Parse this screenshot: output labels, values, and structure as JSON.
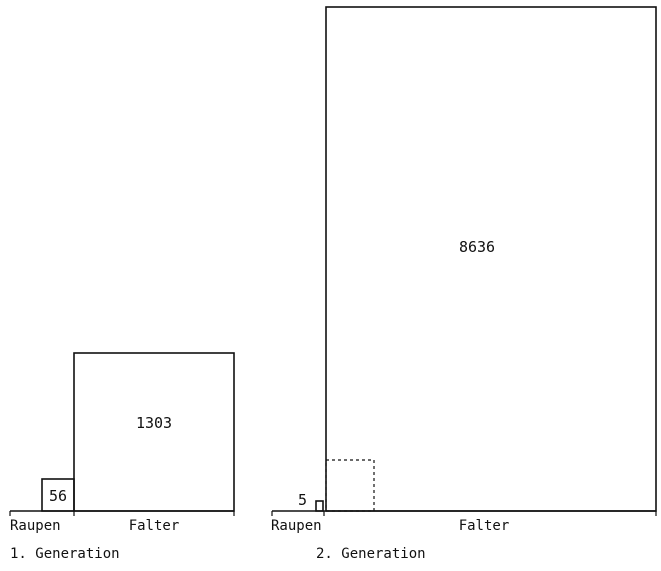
{
  "diagram": {
    "generation1": {
      "raupen_value": "56",
      "falter_value": "1303",
      "raupen_label": "Raupen",
      "falter_label": "Falter",
      "caption": "1. Generation"
    },
    "generation2": {
      "raupen_value": "5",
      "falter_value": "8636",
      "raupen_label": "Raupen",
      "falter_label": "Falter",
      "caption": "2. Generation"
    }
  }
}
